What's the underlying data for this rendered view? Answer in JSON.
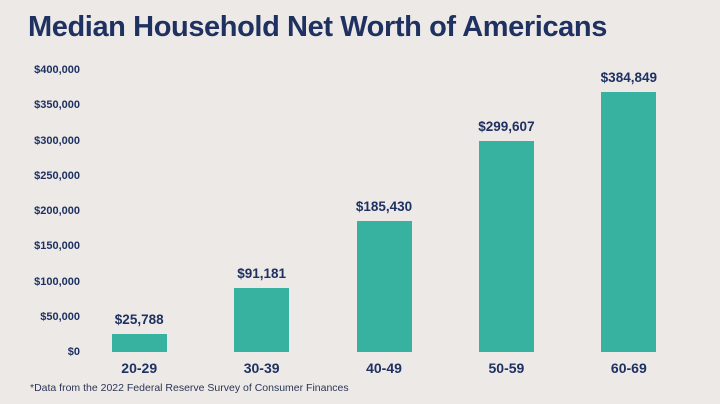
{
  "title": "Median Household Net Worth of Americans",
  "footnote": "*Data from the 2022 Federal Reserve Survey of Consumer Finances",
  "colors": {
    "background": "#EDE9E7",
    "bar": "#38B2A0",
    "text": "#1E3160"
  },
  "chart_data": {
    "type": "bar",
    "title": "Median Household Net Worth of Americans",
    "categories": [
      "20-29",
      "30-39",
      "40-49",
      "50-59",
      "60-69"
    ],
    "values": [
      25788,
      91181,
      185430,
      299607,
      384849
    ],
    "value_labels": [
      "$25,788",
      "$91,181",
      "$185,430",
      "$299,607",
      "$384,849"
    ],
    "y_ticks": [
      "$400,000",
      "$350,000",
      "$300,000",
      "$250,000",
      "$200,000",
      "$150,000",
      "$100,000",
      "$50,000",
      "$0"
    ],
    "ylim": [
      0,
      400000
    ],
    "xlabel": "",
    "ylabel": "",
    "grid": false,
    "legend": false
  }
}
